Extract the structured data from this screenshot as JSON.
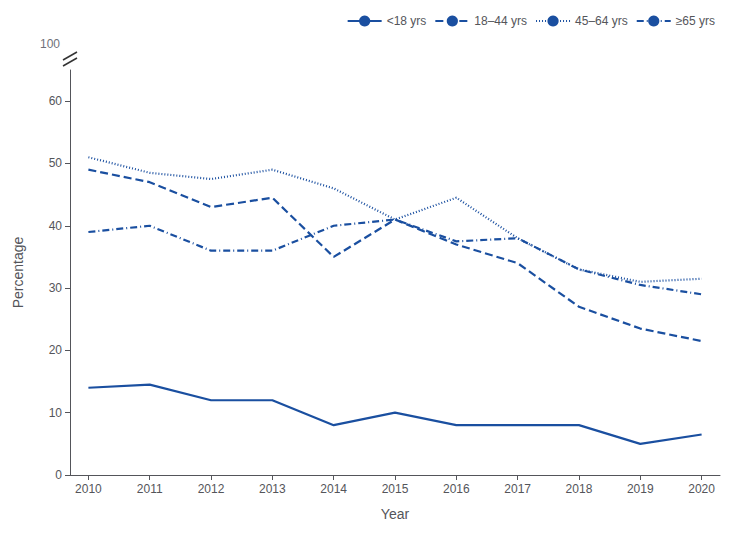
{
  "chart_data": {
    "type": "line",
    "x": [
      2010,
      2011,
      2012,
      2013,
      2014,
      2015,
      2016,
      2017,
      2018,
      2019,
      2020
    ],
    "series": [
      {
        "name": "<18 yrs",
        "color": "#1a4fa0",
        "line_style": "solid",
        "values": [
          14,
          14.5,
          12,
          12,
          8,
          10,
          8,
          8,
          8,
          5,
          6.5
        ]
      },
      {
        "name": "18–44 yrs",
        "color": "#1a4fa0",
        "line_style": "dashed",
        "values": [
          49,
          47,
          43,
          44.5,
          35,
          41,
          37,
          34,
          27,
          23.5,
          21.5
        ]
      },
      {
        "name": "45–64 yrs",
        "color": "#1a4fa0",
        "line_style": "dotted",
        "values": [
          51,
          48.5,
          47.5,
          49,
          46,
          41,
          44.5,
          38,
          33,
          31,
          31.5
        ]
      },
      {
        "name": "≥65 yrs",
        "color": "#1a4fa0",
        "line_style": "dashdot",
        "values": [
          39,
          40,
          36,
          36,
          40,
          41,
          37.5,
          38,
          33,
          30.5,
          29
        ]
      }
    ],
    "xlabel": "Year",
    "ylabel": "Percentage",
    "xlim": [
      2009.7,
      2020.3
    ],
    "xticks": [
      2010,
      2011,
      2012,
      2013,
      2014,
      2015,
      2016,
      2017,
      2018,
      2019,
      2020
    ],
    "ylim": [
      0,
      65
    ],
    "yticks": [
      0,
      10,
      20,
      30,
      40,
      50,
      60
    ],
    "grid": false,
    "legend": "upper right",
    "annotations": [
      "100"
    ]
  }
}
